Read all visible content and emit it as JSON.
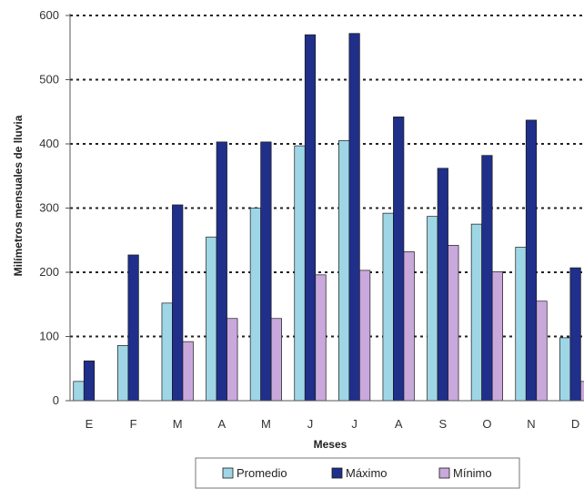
{
  "chart_data": {
    "type": "bar",
    "title": "",
    "xlabel": "Meses",
    "ylabel": "Milímetros mensuales de lluvia",
    "ylim": [
      0,
      600
    ],
    "yticks": [
      0,
      100,
      200,
      300,
      400,
      500,
      600
    ],
    "grid": "dotted horizontal",
    "legend_position": "bottom",
    "categories": [
      "E",
      "F",
      "M",
      "A",
      "M",
      "J",
      "J",
      "A",
      "S",
      "O",
      "N",
      "D"
    ],
    "series": [
      {
        "name": "Promedio",
        "color": "#9fd6e6",
        "values": [
          30,
          86,
          152,
          255,
          300,
          397,
          405,
          292,
          287,
          275,
          239,
          98
        ]
      },
      {
        "name": "Máximo",
        "color": "#1f2f8a",
        "values": [
          62,
          227,
          305,
          403,
          403,
          570,
          572,
          442,
          362,
          382,
          437,
          207
        ]
      },
      {
        "name": "Mínimo",
        "color": "#c9a8dc",
        "values": [
          0,
          0,
          92,
          128,
          128,
          196,
          203,
          232,
          242,
          201,
          155,
          30
        ]
      }
    ]
  }
}
